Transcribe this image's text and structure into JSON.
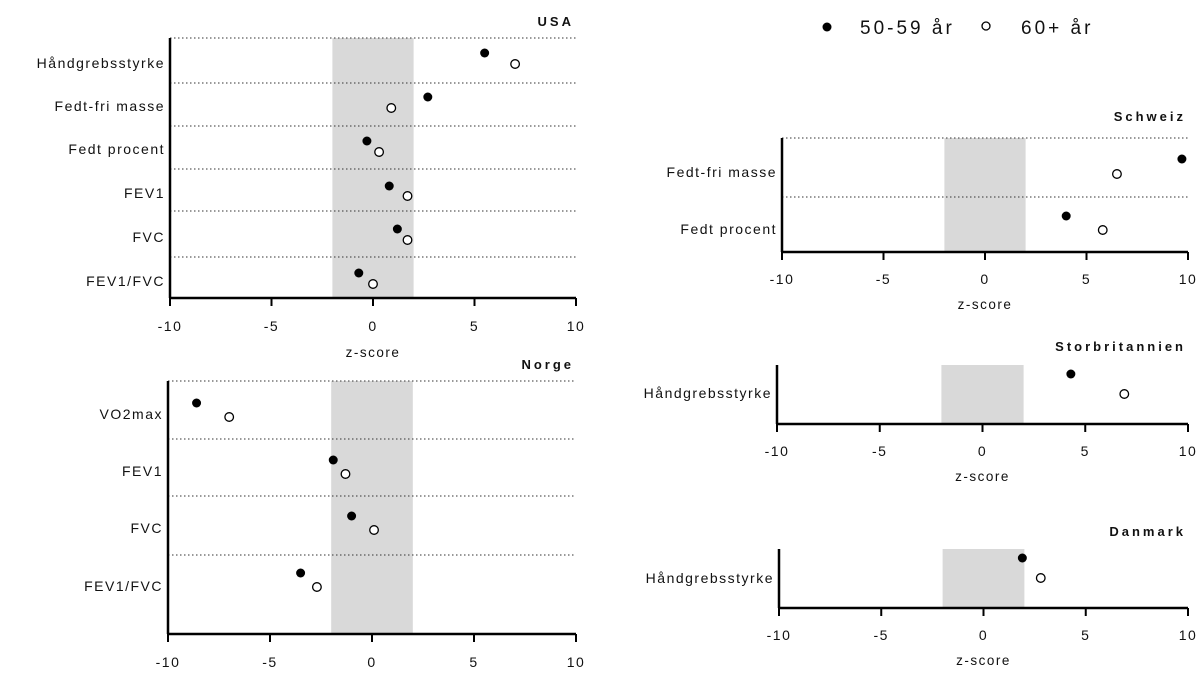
{
  "legend": {
    "items": [
      {
        "label": "50-59 år",
        "marker": "filled-circle"
      },
      {
        "label": "60+ år",
        "marker": "open-circle"
      }
    ]
  },
  "colors": {
    "marker": "#000000",
    "reference_band": "#d9d9d9",
    "axis": "#000000",
    "gridline": "#333333"
  },
  "chart_data": [
    {
      "type": "scatter",
      "title": "USA",
      "xlabel": "z-score",
      "xlim": [
        -10,
        10
      ],
      "xticks": [
        -10,
        -5,
        0,
        5,
        10
      ],
      "reference_band": [
        -2,
        2
      ],
      "categories": [
        "Håndgrebsstyrke",
        "Fedt-fri masse",
        "Fedt procent",
        "FEV1",
        "FVC",
        "FEV1/FVC"
      ],
      "series": [
        {
          "name": "50-59 år",
          "values": [
            5.5,
            2.7,
            -0.3,
            0.8,
            1.2,
            -0.7
          ]
        },
        {
          "name": "60+ år",
          "values": [
            7.0,
            0.9,
            0.3,
            1.7,
            1.7,
            0.0
          ]
        }
      ]
    },
    {
      "type": "scatter",
      "title": "Norge",
      "xlabel": "z-score",
      "xlim": [
        -10,
        10
      ],
      "xticks": [
        -10,
        -5,
        0,
        5,
        10
      ],
      "reference_band": [
        -2,
        2
      ],
      "categories": [
        "VO2max",
        "FEV1",
        "FVC",
        "FEV1/FVC"
      ],
      "series": [
        {
          "name": "50-59 år",
          "values": [
            -8.6,
            -1.9,
            -1.0,
            -3.5
          ]
        },
        {
          "name": "60+ år",
          "values": [
            -7.0,
            -1.3,
            0.1,
            -2.7
          ]
        }
      ]
    },
    {
      "type": "scatter",
      "title": "Schweiz",
      "xlabel": "z-score",
      "xlim": [
        -10,
        10
      ],
      "xticks": [
        -10,
        -5,
        0,
        5,
        10
      ],
      "reference_band": [
        -2,
        2
      ],
      "categories": [
        "Fedt-fri masse",
        "Fedt procent"
      ],
      "series": [
        {
          "name": "50-59 år",
          "values": [
            9.7,
            4.0
          ]
        },
        {
          "name": "60+ år",
          "values": [
            6.5,
            5.8
          ]
        }
      ]
    },
    {
      "type": "scatter",
      "title": "Storbritannien",
      "xlabel": "z-score",
      "xlim": [
        -10,
        10
      ],
      "xticks": [
        -10,
        -5,
        0,
        5,
        10
      ],
      "reference_band": [
        -2,
        2
      ],
      "categories": [
        "Håndgrebsstyrke"
      ],
      "series": [
        {
          "name": "50-59 år",
          "values": [
            4.3
          ]
        },
        {
          "name": "60+ år",
          "values": [
            6.9
          ]
        }
      ]
    },
    {
      "type": "scatter",
      "title": "Danmark",
      "xlabel": "z-score",
      "xlim": [
        -10,
        10
      ],
      "xticks": [
        -10,
        -5,
        0,
        5,
        10
      ],
      "reference_band": [
        -2,
        2
      ],
      "categories": [
        "Håndgrebsstyrke"
      ],
      "series": [
        {
          "name": "50-59 år",
          "values": [
            1.9
          ]
        },
        {
          "name": "60+ år",
          "values": [
            2.8
          ]
        }
      ]
    }
  ]
}
